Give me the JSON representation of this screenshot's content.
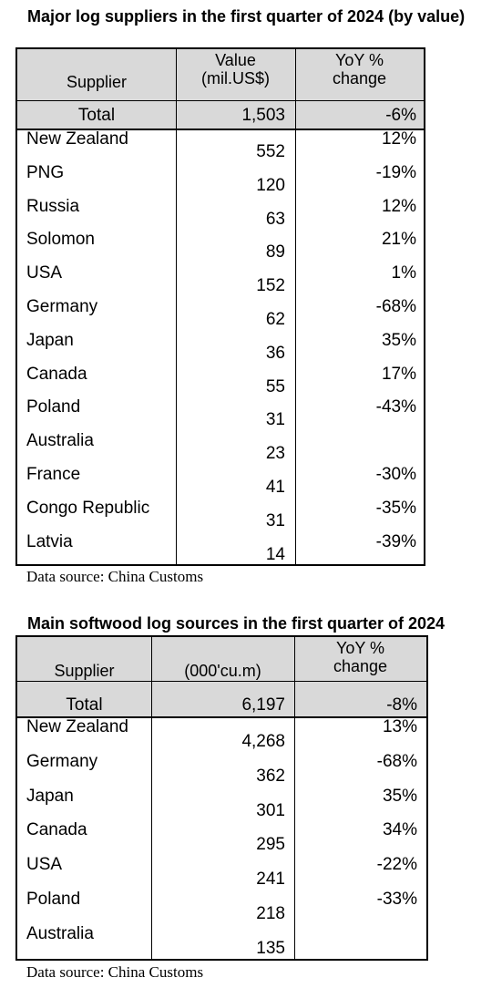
{
  "table1": {
    "title": "Major log suppliers in the first quarter of 2024 (by value)",
    "headers": {
      "supplier": "Supplier",
      "value_line1": "Value",
      "value_line2": "(mil.US$)",
      "yoy_line1": "YoY %",
      "yoy_line2": "change"
    },
    "total": {
      "label": "Total",
      "value": "1,503",
      "yoy": "-6%"
    },
    "rows": [
      {
        "supplier": "New Zealand",
        "value": "552",
        "yoy": "12%"
      },
      {
        "supplier": "PNG",
        "value": "120",
        "yoy": "-19%"
      },
      {
        "supplier": "Russia",
        "value": "63",
        "yoy": "12%"
      },
      {
        "supplier": "Solomon",
        "value": "89",
        "yoy": "21%"
      },
      {
        "supplier": "USA",
        "value": "152",
        "yoy": "1%"
      },
      {
        "supplier": "Germany",
        "value": "62",
        "yoy": "-68%"
      },
      {
        "supplier": "Japan",
        "value": "36",
        "yoy": "35%"
      },
      {
        "supplier": "Canada",
        "value": "55",
        "yoy": "17%"
      },
      {
        "supplier": "Poland",
        "value": "31",
        "yoy": "-43%"
      },
      {
        "supplier": "Australia",
        "value": "23",
        "yoy": ""
      },
      {
        "supplier": "France",
        "value": "41",
        "yoy": "-30%"
      },
      {
        "supplier": "Congo Republic",
        "value": "31",
        "yoy": "-35%"
      },
      {
        "supplier": "Latvia",
        "value": "14",
        "yoy": "-39%"
      }
    ],
    "source": "Data source: China Customs"
  },
  "table2": {
    "title": "Main softwood log sources in the first quarter of 2024",
    "headers": {
      "supplier": "Supplier",
      "value": "(000'cu.m)",
      "yoy_line1": "YoY %",
      "yoy_line2": "change"
    },
    "total": {
      "label": "Total",
      "value": "6,197",
      "yoy": "-8%"
    },
    "rows": [
      {
        "supplier": "New Zealand",
        "value": "4,268",
        "yoy": "13%"
      },
      {
        "supplier": "Germany",
        "value": "362",
        "yoy": "-68%"
      },
      {
        "supplier": "Japan",
        "value": "301",
        "yoy": "35%"
      },
      {
        "supplier": "Canada",
        "value": "295",
        "yoy": "34%"
      },
      {
        "supplier": "USA",
        "value": "241",
        "yoy": "-22%"
      },
      {
        "supplier": "Poland",
        "value": "218",
        "yoy": "-33%"
      },
      {
        "supplier": "Australia",
        "value": "135",
        "yoy": ""
      }
    ],
    "source": "Data source: China Customs"
  }
}
